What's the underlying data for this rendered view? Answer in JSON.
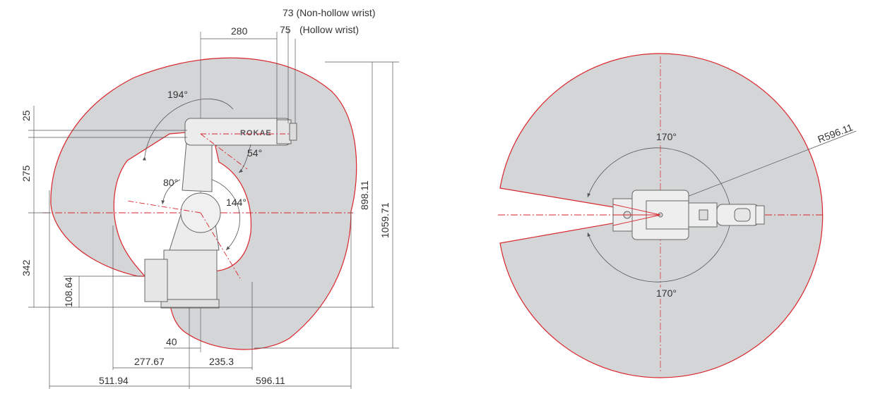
{
  "colors": {
    "envelope_fill": "#d4d5d7",
    "envelope_stroke": "#d9262c",
    "dimension_line": "#555555",
    "robot_line": "#666666"
  },
  "side_view": {
    "wrist_note_1": "73 (Non-hollow wrist)",
    "wrist_note_2_value": "75",
    "wrist_note_2_label": "(Hollow wrist)",
    "dim_280": "280",
    "dim_25": "25",
    "dim_275": "275",
    "dim_342": "342",
    "dim_108_64": "108.64",
    "dim_898_11": "898.11",
    "dim_1059_71": "1059.71",
    "dim_40": "40",
    "dim_277_67": "277.67",
    "dim_235_3": "235.3",
    "dim_511_94": "511.94",
    "dim_596_11": "596.11",
    "angle_194": "194°",
    "angle_54": "54°",
    "angle_80": "80°",
    "angle_144": "144°",
    "logo_text": "ROKAE"
  },
  "top_view": {
    "radius_label": "R596.11",
    "angle_top": "170°",
    "angle_bottom": "170°"
  }
}
